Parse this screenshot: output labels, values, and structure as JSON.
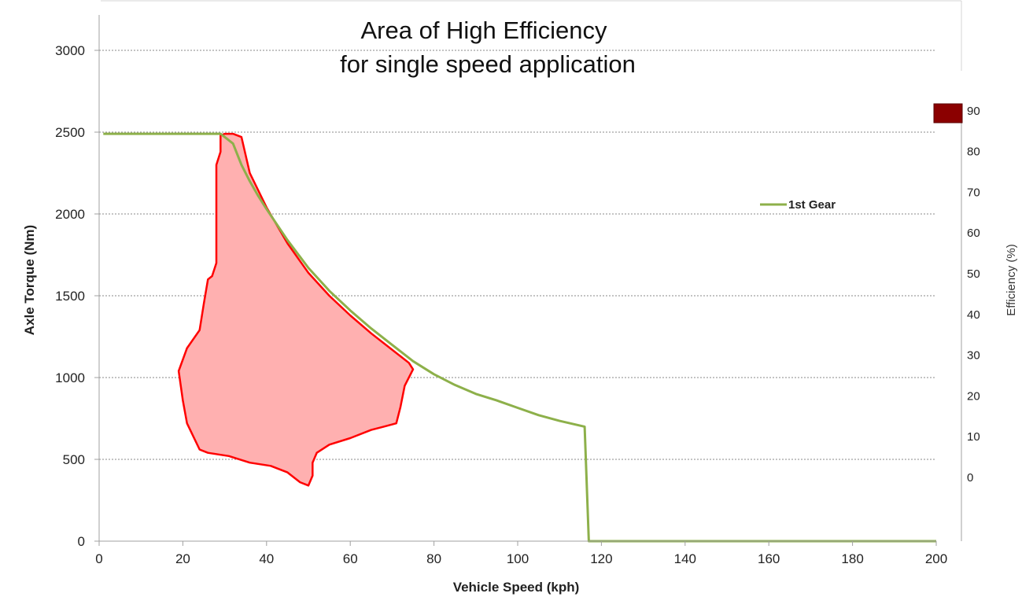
{
  "chart_data": {
    "type": "line",
    "title": [
      "Area of High Efficiency",
      "for single speed application"
    ],
    "xlabel": "Vehicle Speed (kph)",
    "ylabel": "Axle Torque (Nm)",
    "y2label": "Efficiency (%)",
    "xlim": [
      0,
      200
    ],
    "ylim": [
      0,
      3000
    ],
    "x_ticks": [
      0,
      20,
      40,
      60,
      80,
      100,
      120,
      140,
      160,
      180,
      200
    ],
    "y_ticks": [
      0,
      500,
      1000,
      1500,
      2000,
      2500,
      3000
    ],
    "y2_ticks": [
      0,
      10,
      20,
      30,
      40,
      50,
      60,
      70,
      80,
      90
    ],
    "grid": "horizontal-dashed",
    "legend": {
      "placement": "right",
      "entries": [
        {
          "name": "1st Gear",
          "color": "#8db04a"
        }
      ]
    },
    "efficiency_scale_color": "#8b0000",
    "series": [
      {
        "name": "1st Gear",
        "color": "#8db04a",
        "points": [
          [
            1,
            2490
          ],
          [
            29,
            2490
          ],
          [
            30,
            2470
          ],
          [
            32,
            2430
          ],
          [
            34,
            2300
          ],
          [
            36,
            2200
          ],
          [
            38,
            2110
          ],
          [
            40,
            2030
          ],
          [
            45,
            1840
          ],
          [
            50,
            1670
          ],
          [
            55,
            1530
          ],
          [
            60,
            1410
          ],
          [
            65,
            1300
          ],
          [
            70,
            1200
          ],
          [
            75,
            1100
          ],
          [
            80,
            1020
          ],
          [
            85,
            955
          ],
          [
            90,
            900
          ],
          [
            95,
            860
          ],
          [
            100,
            815
          ],
          [
            105,
            770
          ],
          [
            110,
            735
          ],
          [
            116,
            700
          ],
          [
            117,
            0
          ],
          [
            200,
            0
          ]
        ]
      }
    ],
    "region": {
      "name": "Area of High Efficiency",
      "fill": "#ffb0b0",
      "stroke": "#ff0000",
      "points": [
        [
          29,
          2480
        ],
        [
          30,
          2490
        ],
        [
          32,
          2490
        ],
        [
          34,
          2470
        ],
        [
          36,
          2250
        ],
        [
          40,
          2040
        ],
        [
          45,
          1820
        ],
        [
          50,
          1640
        ],
        [
          55,
          1500
        ],
        [
          60,
          1380
        ],
        [
          65,
          1270
        ],
        [
          70,
          1170
        ],
        [
          74,
          1090
        ],
        [
          75,
          1050
        ],
        [
          73,
          950
        ],
        [
          72,
          820
        ],
        [
          71,
          720
        ],
        [
          68,
          700
        ],
        [
          65,
          680
        ],
        [
          60,
          630
        ],
        [
          55,
          590
        ],
        [
          52,
          540
        ],
        [
          51,
          480
        ],
        [
          51,
          400
        ],
        [
          50,
          340
        ],
        [
          48,
          360
        ],
        [
          45,
          420
        ],
        [
          41,
          460
        ],
        [
          36,
          480
        ],
        [
          31,
          520
        ],
        [
          26,
          540
        ],
        [
          24,
          560
        ],
        [
          21,
          720
        ],
        [
          20,
          860
        ],
        [
          19,
          1040
        ],
        [
          21,
          1180
        ],
        [
          24,
          1290
        ],
        [
          25,
          1450
        ],
        [
          26,
          1600
        ],
        [
          27,
          1620
        ],
        [
          28,
          1700
        ],
        [
          28,
          2000
        ],
        [
          28,
          2300
        ],
        [
          29,
          2380
        ],
        [
          29,
          2480
        ]
      ]
    }
  }
}
